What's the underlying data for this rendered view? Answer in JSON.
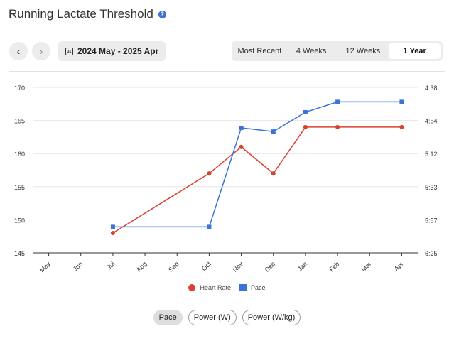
{
  "header": {
    "title": "Running Lactate Threshold",
    "help_icon": "info-icon"
  },
  "nav": {
    "prev_icon": "chevron-left-icon",
    "next_icon": "chevron-right-icon"
  },
  "date_range": {
    "label": "2024 May - 2025 Apr",
    "icon": "calendar-icon",
    "icon_day": "31"
  },
  "tabs": [
    {
      "label": "Most Recent",
      "active": false
    },
    {
      "label": "4 Weeks",
      "active": false
    },
    {
      "label": "12 Weeks",
      "active": false
    },
    {
      "label": "1 Year",
      "active": true
    }
  ],
  "legend": {
    "heart_rate": "Heart Rate",
    "pace": "Pace"
  },
  "metric_toggle": {
    "pace": "Pace",
    "power": "Power (W)",
    "power_kg": "Power (W/kg)",
    "active": "pace"
  },
  "colors": {
    "heart_rate": "#d9412f",
    "pace": "#3a74d6",
    "grid": "#e6e6e6",
    "axis": "#333333"
  },
  "chart_data": {
    "type": "line",
    "x_categories": [
      "May",
      "Jun",
      "Jul",
      "Aug",
      "Sep",
      "Oct",
      "Nov",
      "Dec",
      "Jan",
      "Feb",
      "Mar",
      "Apr"
    ],
    "y_left": {
      "ticks": [
        "170",
        "165",
        "160",
        "155",
        "150",
        "145"
      ],
      "range": [
        145,
        170
      ]
    },
    "y_right": {
      "ticks": [
        "4:38",
        "4:54",
        "5:12",
        "5:33",
        "5:57",
        "6:25"
      ]
    },
    "grid": true,
    "legend_position": "bottom",
    "series": [
      {
        "name": "Heart Rate",
        "axis": "left",
        "marker": "circle",
        "points": [
          {
            "x": "Jul",
            "y": 148
          },
          {
            "x": "Oct",
            "y": 157
          },
          {
            "x": "Nov",
            "y": 161
          },
          {
            "x": "Dec",
            "y": 157
          },
          {
            "x": "Jan",
            "y": 164
          },
          {
            "x": "Feb",
            "y": 164
          },
          {
            "x": "Apr",
            "y": 164
          }
        ]
      },
      {
        "name": "Pace",
        "axis": "right",
        "marker": "square",
        "points": [
          {
            "x": "Jul",
            "y": "6:03"
          },
          {
            "x": "Oct",
            "y": "6:03"
          },
          {
            "x": "Nov",
            "y": "4:58"
          },
          {
            "x": "Dec",
            "y": "5:00"
          },
          {
            "x": "Jan",
            "y": "4:50"
          },
          {
            "x": "Feb",
            "y": "4:45"
          },
          {
            "x": "Apr",
            "y": "4:45"
          }
        ]
      }
    ]
  }
}
